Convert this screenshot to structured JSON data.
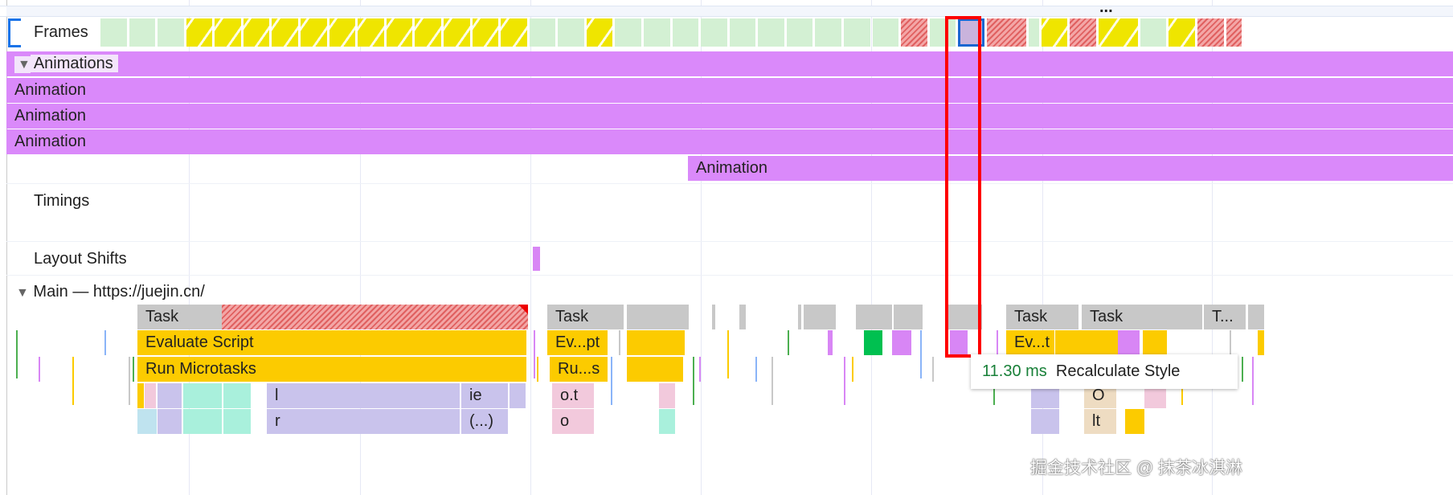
{
  "overflow_menu": "...",
  "frames": {
    "label": "Frames",
    "items": [
      {
        "type": "idle",
        "dur": 1
      },
      {
        "type": "idle",
        "dur": 1
      },
      {
        "type": "idle",
        "dur": 1
      },
      {
        "type": "partial",
        "dur": 1
      },
      {
        "type": "partial",
        "dur": 1
      },
      {
        "type": "partial",
        "dur": 1
      },
      {
        "type": "partial",
        "dur": 1
      },
      {
        "type": "partial",
        "dur": 1
      },
      {
        "type": "partial",
        "dur": 1
      },
      {
        "type": "partial",
        "dur": 1
      },
      {
        "type": "partial",
        "dur": 1
      },
      {
        "type": "partial",
        "dur": 1
      },
      {
        "type": "partial",
        "dur": 1
      },
      {
        "type": "partial",
        "dur": 1
      },
      {
        "type": "partial",
        "dur": 1
      },
      {
        "type": "idle",
        "dur": 1
      },
      {
        "type": "idle",
        "dur": 1
      },
      {
        "type": "partial",
        "dur": 1
      },
      {
        "type": "idle",
        "dur": 1
      },
      {
        "type": "idle",
        "dur": 1
      },
      {
        "type": "idle",
        "dur": 1
      },
      {
        "type": "idle",
        "dur": 1
      },
      {
        "type": "idle",
        "dur": 1
      },
      {
        "type": "idle",
        "dur": 1
      },
      {
        "type": "idle",
        "dur": 1
      },
      {
        "type": "idle",
        "dur": 1
      },
      {
        "type": "idle",
        "dur": 1
      },
      {
        "type": "idle",
        "dur": 1
      },
      {
        "type": "dropped",
        "dur": 1
      },
      {
        "type": "idle",
        "dur": 1
      },
      {
        "type": "selected",
        "dur": 1
      },
      {
        "type": "dropped",
        "dur": 1.5
      },
      {
        "type": "idle",
        "dur": 0.4
      },
      {
        "type": "partial",
        "dur": 1
      },
      {
        "type": "dropped",
        "dur": 1
      },
      {
        "type": "partial",
        "dur": 1.5
      },
      {
        "type": "idle",
        "dur": 1
      },
      {
        "type": "partial",
        "dur": 1
      },
      {
        "type": "dropped",
        "dur": 1
      },
      {
        "type": "dropped",
        "dur": 0.6
      }
    ]
  },
  "animations": {
    "header": "Animations",
    "tracks": [
      "Animation",
      "Animation",
      "Animation",
      "Animation"
    ]
  },
  "timings": {
    "label": "Timings"
  },
  "layout_shifts": {
    "label": "Layout Shifts"
  },
  "main": {
    "header": "Main — https://juejin.cn/",
    "blocks": {
      "task1": "Task",
      "task2": "Task",
      "task3": "Task",
      "task4": "Task",
      "task5": "T...",
      "eval1": "Evaluate Script",
      "eval2": "Ev...pt",
      "eval3": "Ev...t",
      "micro1": "Run Microtasks",
      "micro2": "Ru...s",
      "r4a": "l",
      "r4b": "ie",
      "r4c": "o.t",
      "r4d": "O",
      "r5a": "r",
      "r5b": "(...)",
      "r5c": "o",
      "r5d": "lt"
    }
  },
  "tooltip": {
    "duration": "11.30 ms",
    "name": "Recalculate Style"
  },
  "watermark": "掘金技术社区 @ 抹茶冰淇淋",
  "colors": {
    "highlight": "#ff0000",
    "duration": "#188038"
  }
}
